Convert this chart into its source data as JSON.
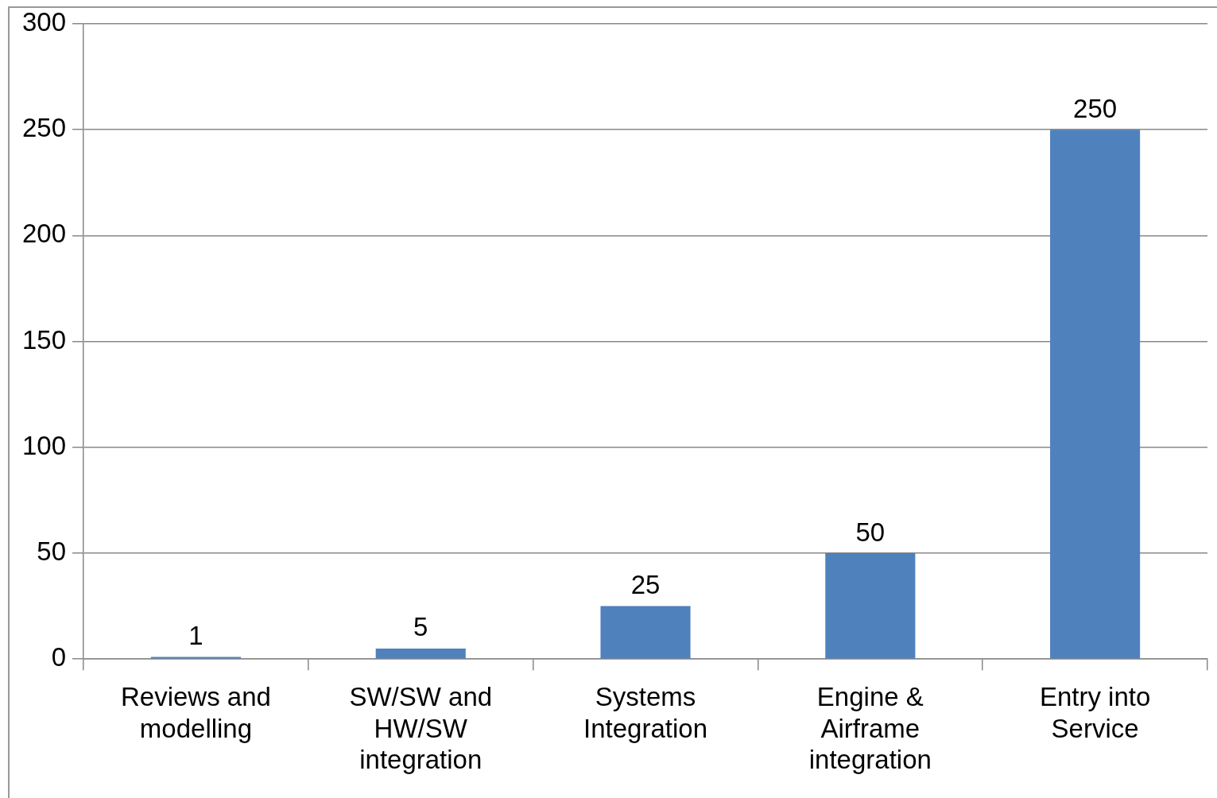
{
  "chart_data": {
    "type": "bar",
    "categories": [
      "Reviews and modelling",
      "SW/SW and HW/SW integration",
      "Systems Integration",
      "Engine & Airframe integration",
      "Entry into Service"
    ],
    "values": [
      1,
      5,
      25,
      50,
      250
    ],
    "color": "#4f81bd",
    "ylim": [
      0,
      300
    ],
    "yticks": [
      0,
      50,
      100,
      150,
      200,
      250,
      300
    ],
    "grid": "y",
    "data_labels": true,
    "legend": false
  }
}
